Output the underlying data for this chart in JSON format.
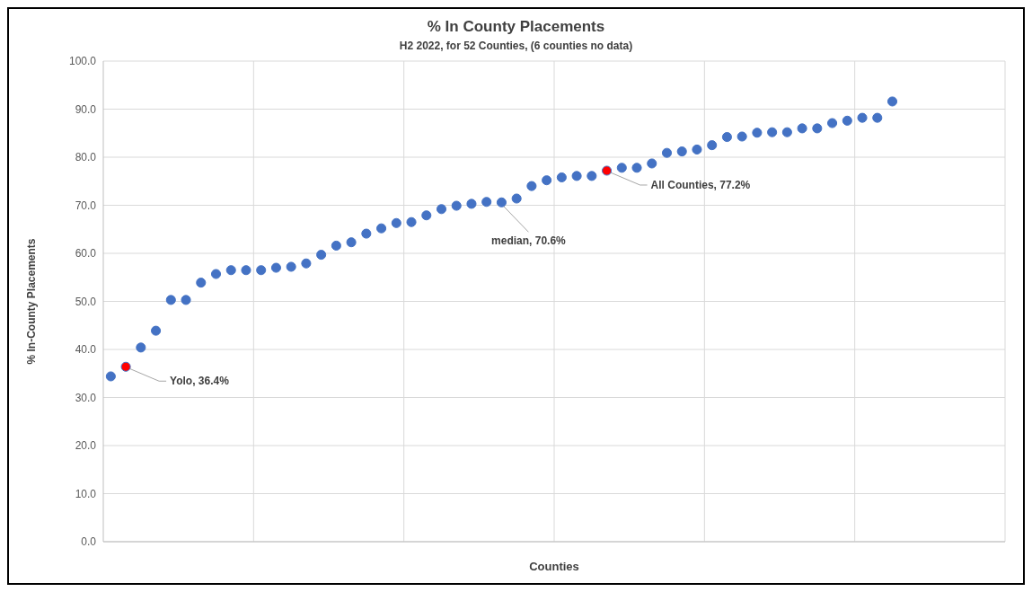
{
  "chart_data": {
    "type": "scatter",
    "title": "% In County Placements",
    "subtitle": "H2 2022, for 52 Counties, (6 counties no data)",
    "xlabel": "Counties",
    "ylabel": "% In-County Placements",
    "categories": [
      null,
      null,
      null,
      null,
      null,
      null,
      null,
      null,
      null,
      null,
      null,
      null,
      null,
      null,
      null,
      null,
      null,
      null,
      null,
      null,
      null,
      null,
      null,
      null,
      null,
      null,
      null,
      null,
      null,
      null,
      null,
      null,
      null,
      null,
      null,
      null,
      null,
      null,
      null,
      null,
      null,
      null,
      null,
      null,
      null,
      null,
      null,
      null,
      null,
      null,
      null,
      null,
      null,
      null,
      null,
      null,
      null,
      null,
      null,
      null
    ],
    "series": [
      {
        "color": "#4472c4",
        "values": [
          34.4,
          36.4,
          40.4,
          43.9,
          50.3,
          50.3,
          53.9,
          55.7,
          56.5,
          56.5,
          56.5,
          57.0,
          57.2,
          57.9,
          59.7,
          61.6,
          62.3,
          64.1,
          65.2,
          66.3,
          66.5,
          67.9,
          69.2,
          69.9,
          70.3,
          70.7,
          70.6,
          71.4,
          74.0,
          75.2,
          75.8,
          76.1,
          76.1,
          77.2,
          77.8,
          77.8,
          78.7,
          80.9,
          81.2,
          81.6,
          82.5,
          84.2,
          84.3,
          85.1,
          85.2,
          85.2,
          86.0,
          86.0,
          87.1,
          87.6,
          88.2,
          88.2,
          91.6,
          null,
          null,
          null,
          null,
          null,
          null,
          null
        ],
        "colors": [
          "#4472c4",
          "#ff0000",
          "#4472c4",
          "#4472c4",
          "#4472c4",
          "#4472c4",
          "#4472c4",
          "#4472c4",
          "#4472c4",
          "#4472c4",
          "#4472c4",
          "#4472c4",
          "#4472c4",
          "#4472c4",
          "#4472c4",
          "#4472c4",
          "#4472c4",
          "#4472c4",
          "#4472c4",
          "#4472c4",
          "#4472c4",
          "#4472c4",
          "#4472c4",
          "#4472c4",
          "#4472c4",
          "#4472c4",
          "#4472c4",
          "#4472c4",
          "#4472c4",
          "#4472c4",
          "#4472c4",
          "#4472c4",
          "#4472c4",
          "#ff0000",
          "#4472c4",
          "#4472c4",
          "#4472c4",
          "#4472c4",
          "#4472c4",
          "#4472c4",
          "#4472c4",
          "#4472c4",
          "#4472c4",
          "#4472c4",
          "#4472c4",
          "#4472c4",
          "#4472c4",
          "#4472c4",
          "#4472c4",
          "#4472c4",
          "#4472c4",
          "#4472c4",
          "#4472c4",
          null,
          null,
          null,
          null,
          null,
          null,
          null
        ]
      }
    ],
    "ylim": [
      0,
      100
    ],
    "yticks": [
      {
        "value": 0,
        "label": "0.0"
      },
      {
        "value": 10,
        "label": "10.0"
      },
      {
        "value": 20,
        "label": "20.0"
      },
      {
        "value": 30,
        "label": "30.0"
      },
      {
        "value": 40,
        "label": "40.0"
      },
      {
        "value": 50,
        "label": "50.0"
      },
      {
        "value": 60,
        "label": "60.0"
      },
      {
        "value": 70,
        "label": "70.0"
      },
      {
        "value": 80,
        "label": "80.0"
      },
      {
        "value": 90,
        "label": "90.0"
      },
      {
        "value": 100,
        "label": "100.0"
      }
    ],
    "grid": true,
    "marker": "circle",
    "annotations": [
      "Yolo, 36.4%",
      "median, 70.6%",
      "All Counties, 77.2%"
    ]
  }
}
